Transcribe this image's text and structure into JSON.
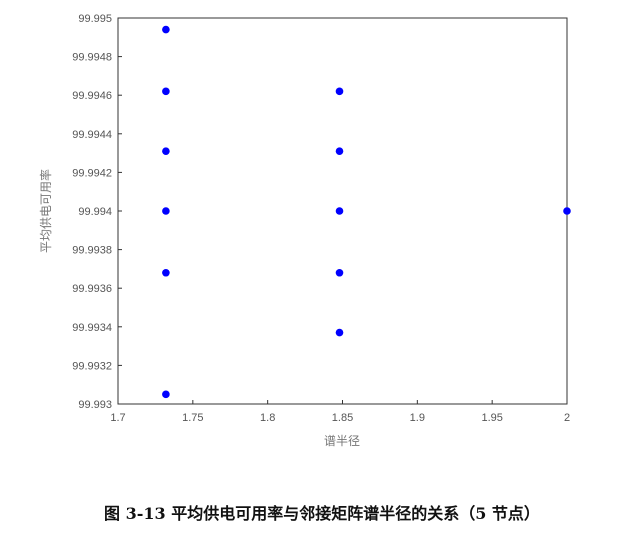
{
  "caption": "图 3-13  平均供电可用率与邻接矩阵谱半径的关系（5 节点）",
  "chart_data": {
    "type": "scatter",
    "title": "",
    "xlabel": "谱半径",
    "ylabel": "平均供电可用率",
    "xlim": [
      1.7,
      2.0
    ],
    "ylim": [
      99.993,
      99.995
    ],
    "xticks": [
      "1.7",
      "1.75",
      "1.8",
      "1.85",
      "1.9",
      "1.95",
      "2"
    ],
    "yticks": [
      "99.993",
      "99.9932",
      "99.9934",
      "99.9936",
      "99.9938",
      "99.994",
      "99.9942",
      "99.9944",
      "99.9946",
      "99.9948",
      "99.995"
    ],
    "grid": false,
    "marker_color": "#0000ff",
    "points": [
      {
        "x": 1.732,
        "y": 99.99494
      },
      {
        "x": 1.732,
        "y": 99.99462
      },
      {
        "x": 1.732,
        "y": 99.99431
      },
      {
        "x": 1.732,
        "y": 99.994
      },
      {
        "x": 1.732,
        "y": 99.99368
      },
      {
        "x": 1.732,
        "y": 99.99305
      },
      {
        "x": 1.848,
        "y": 99.99462
      },
      {
        "x": 1.848,
        "y": 99.99431
      },
      {
        "x": 1.848,
        "y": 99.994
      },
      {
        "x": 1.848,
        "y": 99.99368
      },
      {
        "x": 1.848,
        "y": 99.99337
      },
      {
        "x": 2.0,
        "y": 99.994
      }
    ]
  }
}
